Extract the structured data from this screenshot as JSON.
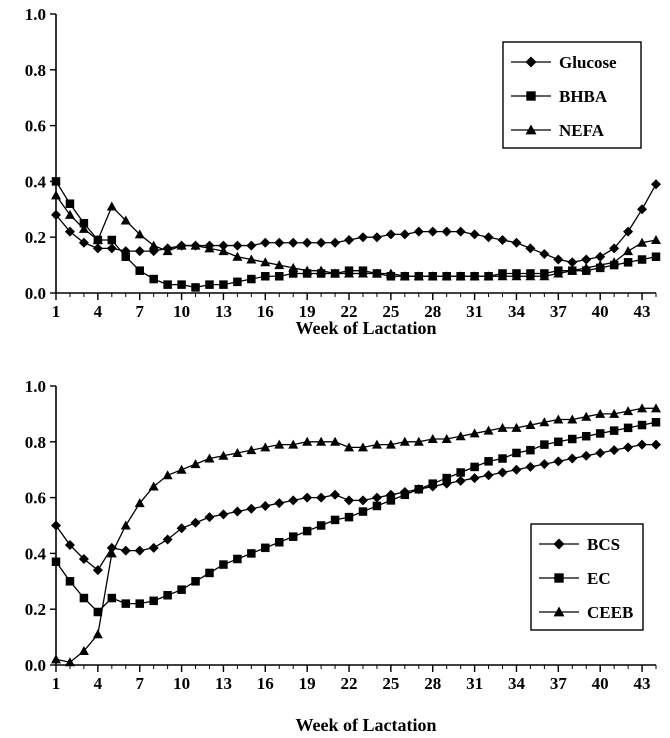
{
  "chart_data": [
    {
      "type": "line",
      "xlabel": "Week of Lactation",
      "ylabel": "",
      "xlim": [
        1,
        44
      ],
      "ylim": [
        0,
        1
      ],
      "x_ticks": [
        1,
        4,
        7,
        10,
        13,
        16,
        19,
        22,
        25,
        28,
        31,
        34,
        37,
        40,
        43
      ],
      "y_ticks": [
        "0.0",
        "0.2",
        "0.4",
        "0.6",
        "0.8",
        "1.0"
      ],
      "legend_position": "top-right",
      "series": [
        {
          "name": "Glucose",
          "marker": "diamond",
          "values": [
            0.28,
            0.22,
            0.18,
            0.16,
            0.16,
            0.15,
            0.15,
            0.15,
            0.16,
            0.17,
            0.17,
            0.17,
            0.17,
            0.17,
            0.17,
            0.18,
            0.18,
            0.18,
            0.18,
            0.18,
            0.18,
            0.19,
            0.2,
            0.2,
            0.21,
            0.21,
            0.22,
            0.22,
            0.22,
            0.22,
            0.21,
            0.2,
            0.19,
            0.18,
            0.16,
            0.14,
            0.12,
            0.11,
            0.12,
            0.13,
            0.16,
            0.22,
            0.3,
            0.39
          ]
        },
        {
          "name": "BHBA",
          "marker": "square",
          "values": [
            0.4,
            0.32,
            0.25,
            0.19,
            0.19,
            0.13,
            0.08,
            0.05,
            0.03,
            0.03,
            0.02,
            0.03,
            0.03,
            0.04,
            0.05,
            0.06,
            0.06,
            0.07,
            0.07,
            0.07,
            0.07,
            0.08,
            0.08,
            0.07,
            0.06,
            0.06,
            0.06,
            0.06,
            0.06,
            0.06,
            0.06,
            0.06,
            0.07,
            0.07,
            0.07,
            0.07,
            0.08,
            0.08,
            0.08,
            0.09,
            0.1,
            0.11,
            0.12,
            0.13
          ]
        },
        {
          "name": "NEFA",
          "marker": "triangle",
          "values": [
            0.35,
            0.28,
            0.23,
            0.19,
            0.31,
            0.26,
            0.21,
            0.17,
            0.15,
            0.17,
            0.17,
            0.16,
            0.15,
            0.13,
            0.12,
            0.11,
            0.1,
            0.09,
            0.08,
            0.08,
            0.07,
            0.07,
            0.07,
            0.07,
            0.07,
            0.06,
            0.06,
            0.06,
            0.06,
            0.06,
            0.06,
            0.06,
            0.06,
            0.06,
            0.06,
            0.06,
            0.07,
            0.08,
            0.09,
            0.1,
            0.11,
            0.15,
            0.18,
            0.19
          ]
        }
      ]
    },
    {
      "type": "line",
      "xlabel": "Week of Lactation",
      "ylabel": "",
      "xlim": [
        1,
        44
      ],
      "ylim": [
        0,
        1
      ],
      "x_ticks": [
        1,
        4,
        7,
        10,
        13,
        16,
        19,
        22,
        25,
        28,
        31,
        34,
        37,
        40,
        43
      ],
      "y_ticks": [
        "0.0",
        "0.2",
        "0.4",
        "0.6",
        "0.8",
        "1.0"
      ],
      "legend_position": "bottom-right",
      "series": [
        {
          "name": "BCS",
          "marker": "diamond",
          "values": [
            0.5,
            0.43,
            0.38,
            0.34,
            0.42,
            0.41,
            0.41,
            0.42,
            0.45,
            0.49,
            0.51,
            0.53,
            0.54,
            0.55,
            0.56,
            0.57,
            0.58,
            0.59,
            0.6,
            0.6,
            0.61,
            0.59,
            0.59,
            0.6,
            0.61,
            0.62,
            0.63,
            0.64,
            0.65,
            0.66,
            0.67,
            0.68,
            0.69,
            0.7,
            0.71,
            0.72,
            0.73,
            0.74,
            0.75,
            0.76,
            0.77,
            0.78,
            0.79,
            0.79
          ]
        },
        {
          "name": "EC",
          "marker": "square",
          "values": [
            0.37,
            0.3,
            0.24,
            0.19,
            0.24,
            0.22,
            0.22,
            0.23,
            0.25,
            0.27,
            0.3,
            0.33,
            0.36,
            0.38,
            0.4,
            0.42,
            0.44,
            0.46,
            0.48,
            0.5,
            0.52,
            0.53,
            0.55,
            0.57,
            0.59,
            0.61,
            0.63,
            0.65,
            0.67,
            0.69,
            0.71,
            0.73,
            0.74,
            0.76,
            0.77,
            0.79,
            0.8,
            0.81,
            0.82,
            0.83,
            0.84,
            0.85,
            0.86,
            0.87
          ]
        },
        {
          "name": "CEEB",
          "marker": "triangle",
          "values": [
            0.02,
            0.01,
            0.05,
            0.11,
            0.4,
            0.5,
            0.58,
            0.64,
            0.68,
            0.7,
            0.72,
            0.74,
            0.75,
            0.76,
            0.77,
            0.78,
            0.79,
            0.79,
            0.8,
            0.8,
            0.8,
            0.78,
            0.78,
            0.79,
            0.79,
            0.8,
            0.8,
            0.81,
            0.81,
            0.82,
            0.83,
            0.84,
            0.85,
            0.85,
            0.86,
            0.87,
            0.88,
            0.88,
            0.89,
            0.9,
            0.9,
            0.91,
            0.92,
            0.92
          ]
        }
      ]
    }
  ]
}
